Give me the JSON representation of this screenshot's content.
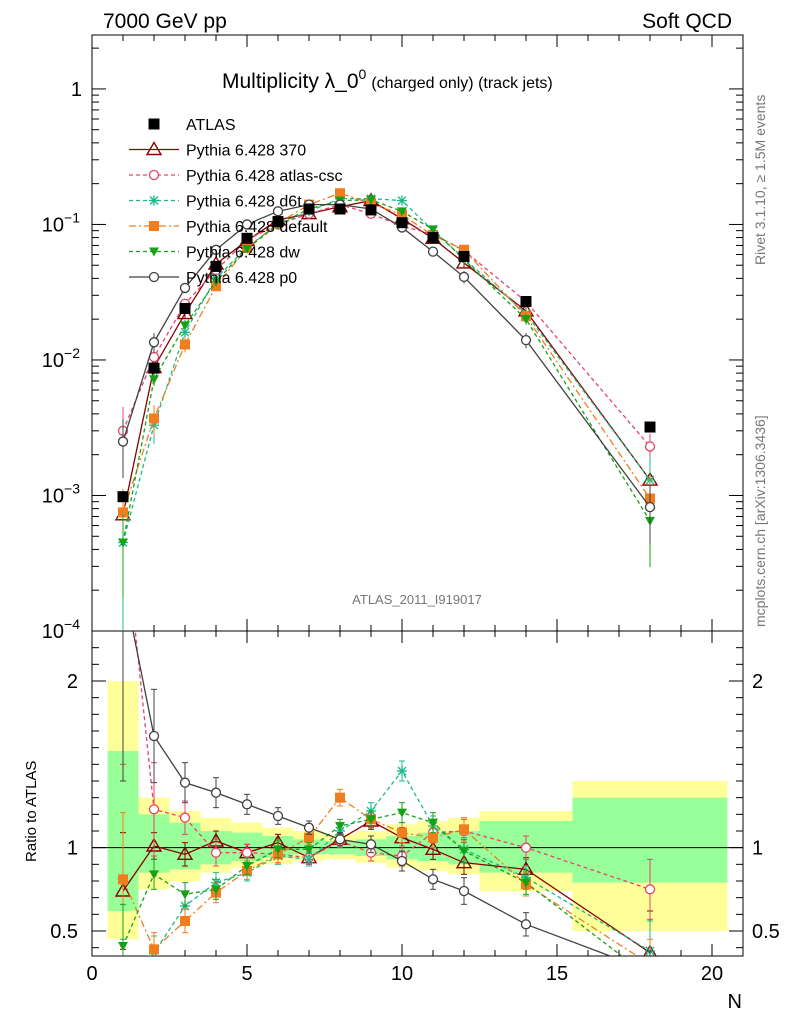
{
  "header": {
    "left": "7000 GeV pp",
    "right": "Soft QCD"
  },
  "side_text": {
    "top": "Rivet 3.1.10, ≥ 1.5M events",
    "bottom": "mcplots.cern.ch [arXiv:1306.3436]"
  },
  "chart_data": {
    "type": "scatter",
    "title": "Multiplicity λ_0",
    "title_sup": "0",
    "title_suffix": "(charged only) (track jets)",
    "analysis_label": "ATLAS_2011_I919017",
    "xlabel": "N",
    "ylabel_ratio": "Ratio to ATLAS",
    "xlim": [
      0,
      21
    ],
    "ylim_main": [
      0.0001,
      2.5
    ],
    "ylim_ratio": [
      0.35,
      2.3
    ],
    "yscale_main": "log",
    "x_ticks": [
      "0",
      "5",
      "10",
      "15",
      "20"
    ],
    "y_ticks_main": [
      {
        "base": "10",
        "exp": "−4",
        "v": 0.0001
      },
      {
        "base": "10",
        "exp": "−3",
        "v": 0.001
      },
      {
        "base": "10",
        "exp": "−2",
        "v": 0.01
      },
      {
        "base": "10",
        "exp": "−1",
        "v": 0.1
      },
      {
        "base": "1",
        "exp": "",
        "v": 1
      }
    ],
    "y_ticks_ratio": [
      "0.5",
      "1",
      "2"
    ],
    "legend_placement": "top-left",
    "x": [
      1,
      2,
      3,
      4,
      5,
      6,
      7,
      8,
      9,
      10,
      11,
      12,
      14,
      18
    ],
    "reference": {
      "name": "ATLAS",
      "values": [
        0.00098,
        0.0087,
        0.024,
        0.049,
        0.079,
        0.105,
        0.13,
        0.13,
        0.128,
        0.103,
        0.08,
        0.058,
        0.027,
        0.0032
      ],
      "band_inner": [
        [
          0.5,
          1.5,
          0.62,
          1.58
        ],
        [
          1.5,
          2.5,
          0.85,
          1.2
        ],
        [
          2.5,
          3.5,
          0.87,
          1.15
        ],
        [
          3.5,
          4.5,
          0.9,
          1.1
        ],
        [
          4.5,
          5.5,
          0.92,
          1.09
        ],
        [
          5.5,
          6.5,
          0.94,
          1.07
        ],
        [
          6.5,
          7.5,
          0.96,
          1.05
        ],
        [
          7.5,
          8.5,
          0.96,
          1.04
        ],
        [
          8.5,
          9.5,
          0.95,
          1.05
        ],
        [
          9.5,
          10.5,
          0.93,
          1.07
        ],
        [
          10.5,
          11.5,
          0.92,
          1.09
        ],
        [
          11.5,
          12.5,
          0.9,
          1.1
        ],
        [
          12.5,
          15.5,
          0.85,
          1.16
        ],
        [
          15.5,
          20.5,
          0.79,
          1.3
        ]
      ],
      "band_outer": [
        [
          0.5,
          1.5,
          0.45,
          2.0
        ],
        [
          1.5,
          2.5,
          0.75,
          1.3
        ],
        [
          2.5,
          3.5,
          0.8,
          1.22
        ],
        [
          3.5,
          4.5,
          0.85,
          1.18
        ],
        [
          4.5,
          5.5,
          0.88,
          1.15
        ],
        [
          5.5,
          6.5,
          0.9,
          1.12
        ],
        [
          6.5,
          7.5,
          0.92,
          1.1
        ],
        [
          7.5,
          8.5,
          0.93,
          1.08
        ],
        [
          8.5,
          9.5,
          0.91,
          1.1
        ],
        [
          9.5,
          10.5,
          0.88,
          1.14
        ],
        [
          10.5,
          11.5,
          0.86,
          1.16
        ],
        [
          11.5,
          12.5,
          0.84,
          1.18
        ],
        [
          12.5,
          15.5,
          0.74,
          1.22
        ],
        [
          15.5,
          20.5,
          0.5,
          1.4
        ]
      ]
    },
    "series": [
      {
        "name": "Pythia 6.428 370",
        "color": "#8b0000",
        "dash": "",
        "marker": "triangle-open",
        "values": [
          0.00072,
          0.0088,
          0.022,
          0.051,
          0.076,
          0.108,
          0.12,
          0.135,
          0.15,
          0.11,
          0.079,
          0.052,
          0.023,
          0.0013
        ],
        "ratio": [
          0.74,
          1.01,
          0.96,
          1.04,
          0.97,
          1.03,
          0.94,
          1.05,
          1.16,
          1.06,
          0.99,
          0.91,
          0.87,
          0.37
        ],
        "ratio_err": [
          0.35,
          0.08,
          0.07,
          0.06,
          0.05,
          0.05,
          0.04,
          0.04,
          0.05,
          0.06,
          0.06,
          0.07,
          0.07,
          0.25
        ]
      },
      {
        "name": "Pythia 6.428 atlas-csc",
        "color": "#e8436a",
        "dash": "4,3",
        "marker": "circle-open",
        "values": [
          0.003,
          0.0105,
          0.026,
          0.046,
          0.077,
          0.1,
          0.12,
          0.14,
          0.12,
          0.097,
          0.085,
          0.064,
          0.027,
          0.0023
        ],
        "ratio": [
          3.0,
          1.23,
          1.18,
          0.97,
          0.97,
          0.96,
          0.94,
          1.04,
          0.97,
          0.95,
          1.09,
          1.1,
          1.0,
          0.75
        ],
        "ratio_err": [
          1.5,
          0.28,
          0.1,
          0.08,
          0.05,
          0.05,
          0.04,
          0.04,
          0.05,
          0.06,
          0.06,
          0.07,
          0.07,
          0.18
        ]
      },
      {
        "name": "Pythia 6.428 d6t",
        "color": "#19b98c",
        "dash": "4,3",
        "marker": "star",
        "values": [
          0.00045,
          0.0033,
          0.016,
          0.04,
          0.068,
          0.1,
          0.125,
          0.155,
          0.155,
          0.15,
          0.09,
          0.056,
          0.022,
          0.0013
        ],
        "ratio": [
          0.25,
          0.37,
          0.65,
          0.79,
          0.85,
          0.95,
          0.93,
          1.1,
          1.22,
          1.46,
          1.13,
          0.99,
          0.82,
          0.38
        ],
        "ratio_err": [
          0.2,
          0.1,
          0.07,
          0.06,
          0.05,
          0.05,
          0.04,
          0.04,
          0.05,
          0.06,
          0.06,
          0.07,
          0.07,
          0.18
        ]
      },
      {
        "name": "Pythia 6.428 default",
        "color": "#f07d1e",
        "dash": "7,3,2,3",
        "marker": "square",
        "values": [
          0.00075,
          0.0037,
          0.013,
          0.035,
          0.067,
          0.102,
          0.14,
          0.17,
          0.143,
          0.118,
          0.083,
          0.065,
          0.021,
          0.00095
        ],
        "ratio": [
          0.81,
          0.39,
          0.56,
          0.73,
          0.86,
          0.96,
          1.06,
          1.3,
          1.17,
          1.09,
          1.06,
          1.11,
          0.78,
          0.3
        ],
        "ratio_err": [
          0.4,
          0.1,
          0.07,
          0.06,
          0.05,
          0.05,
          0.04,
          0.05,
          0.05,
          0.06,
          0.06,
          0.07,
          0.07,
          0.15
        ]
      },
      {
        "name": "Pythia 6.428 dw",
        "color": "#17a117",
        "dash": "4,3",
        "marker": "triangle-down",
        "values": [
          0.00045,
          0.0072,
          0.018,
          0.038,
          0.066,
          0.1,
          0.13,
          0.15,
          0.152,
          0.125,
          0.092,
          0.055,
          0.02,
          0.00065
        ],
        "ratio": [
          0.41,
          0.84,
          0.72,
          0.75,
          0.89,
          0.99,
          0.99,
          1.13,
          1.17,
          1.21,
          1.15,
          0.98,
          0.79,
          0.22
        ],
        "ratio_err": [
          0.25,
          0.09,
          0.07,
          0.06,
          0.05,
          0.05,
          0.04,
          0.04,
          0.05,
          0.06,
          0.06,
          0.07,
          0.07,
          0.12
        ]
      },
      {
        "name": "Pythia 6.428 p0",
        "color": "#404040",
        "dash": "",
        "marker": "circle-open",
        "values": [
          0.0025,
          0.0135,
          0.034,
          0.065,
          0.1,
          0.125,
          0.14,
          0.14,
          0.13,
          0.095,
          0.063,
          0.041,
          0.014,
          0.00082
        ],
        "ratio": [
          2.6,
          1.67,
          1.39,
          1.33,
          1.26,
          1.19,
          1.12,
          1.05,
          1.02,
          0.92,
          0.81,
          0.74,
          0.54,
          0.26
        ],
        "ratio_err": [
          1.2,
          0.28,
          0.12,
          0.09,
          0.06,
          0.05,
          0.04,
          0.04,
          0.05,
          0.06,
          0.06,
          0.08,
          0.07,
          0.12
        ]
      }
    ]
  }
}
